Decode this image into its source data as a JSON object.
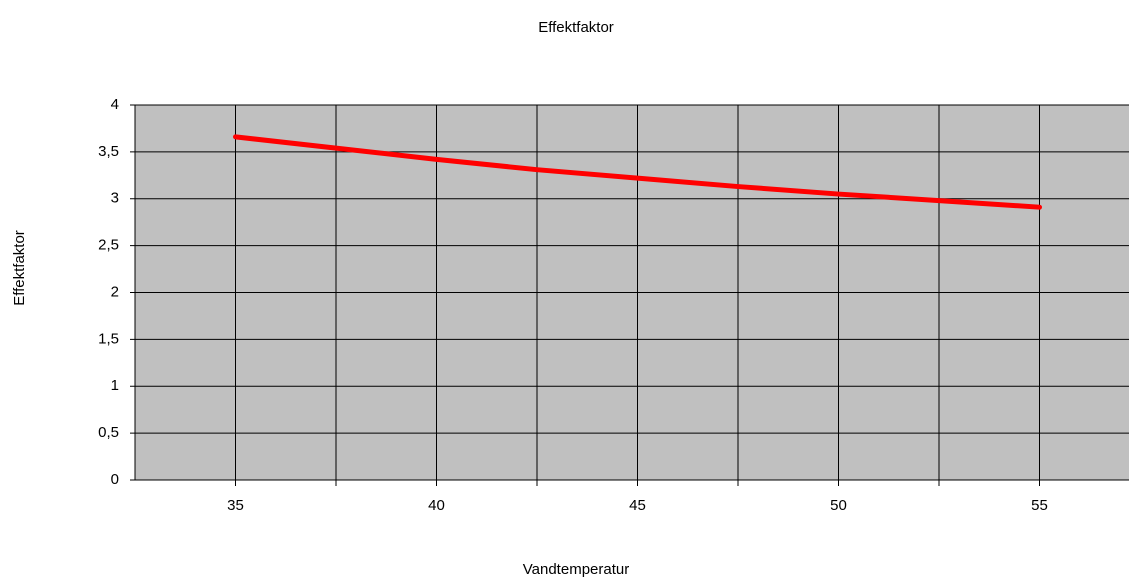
{
  "chart_data": {
    "type": "line",
    "title": "Effektfaktor",
    "x_label": "Vandtemperatur",
    "y_label": "Effektfaktor",
    "x": [
      35,
      37.5,
      40,
      42.5,
      45,
      47.5,
      50,
      52.5,
      55
    ],
    "series": [
      {
        "name": "Effektfaktor",
        "color": "#ff0000",
        "values": [
          3.66,
          3.54,
          3.42,
          3.31,
          3.22,
          3.13,
          3.05,
          2.98,
          2.91
        ]
      }
    ],
    "xlim": [
      32.5,
      57.5
    ],
    "xticks": [
      35,
      40,
      45,
      50,
      55
    ],
    "ylim": [
      0,
      4
    ],
    "yticks": [
      0,
      {
        "value": 0.5,
        "label": "0,5"
      },
      1,
      {
        "value": 1.5,
        "label": "1,5"
      },
      2,
      {
        "value": 2.5,
        "label": "2,5"
      },
      3,
      {
        "value": 3.5,
        "label": "3,5"
      },
      4
    ],
    "grid": true,
    "background": "#c0c0c0"
  }
}
